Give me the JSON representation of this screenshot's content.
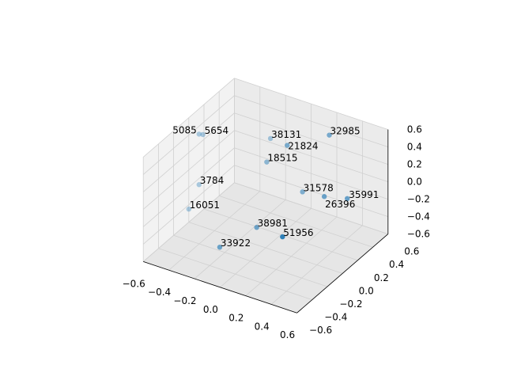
{
  "chart_data": {
    "type": "scatter",
    "projection": "3d",
    "title": "",
    "xlabel": "",
    "ylabel": "",
    "zlabel": "",
    "xlim": [
      -0.6,
      0.6
    ],
    "ylim": [
      -0.6,
      0.6
    ],
    "zlim": [
      -0.6,
      0.6
    ],
    "xticks": [
      "−0.6",
      "−0.4",
      "−0.2",
      "0.0",
      "0.2",
      "0.4",
      "0.6"
    ],
    "yticks": [
      "−0.6",
      "−0.4",
      "−0.2",
      "0.0",
      "0.2",
      "0.4",
      "0.6"
    ],
    "zticks": [
      "−0.6",
      "−0.4",
      "−0.2",
      "0.0",
      "0.2",
      "0.4",
      "0.6"
    ],
    "grid": true,
    "marker_color": "#1f77b4",
    "points": [
      {
        "label": "5085",
        "x": -0.52,
        "y": 0.0,
        "z": 0.45
      },
      {
        "label": "5654",
        "x": -0.49,
        "y": 0.0,
        "z": 0.46
      },
      {
        "label": "38131",
        "x": -0.14,
        "y": 0.3,
        "z": 0.36
      },
      {
        "label": "21824",
        "x": 0.05,
        "y": 0.2,
        "z": 0.45
      },
      {
        "label": "32985",
        "x": 0.26,
        "y": 0.4,
        "z": 0.52
      },
      {
        "label": "18515",
        "x": -0.11,
        "y": 0.2,
        "z": 0.18
      },
      {
        "label": "3784",
        "x": -0.52,
        "y": 0.0,
        "z": -0.13
      },
      {
        "label": "16051",
        "x": -0.6,
        "y": 0.0,
        "z": -0.45
      },
      {
        "label": "31578",
        "x": 0.11,
        "y": 0.3,
        "z": -0.13
      },
      {
        "label": "26396",
        "x": 0.28,
        "y": 0.3,
        "z": -0.1
      },
      {
        "label": "35991",
        "x": 0.4,
        "y": 0.4,
        "z": -0.14
      },
      {
        "label": "38981",
        "x": -0.07,
        "y": 0.0,
        "z": -0.4
      },
      {
        "label": "51956",
        "x": 0.25,
        "y": -0.2,
        "z": -0.2
      },
      {
        "label": "33922",
        "x": -0.24,
        "y": -0.2,
        "z": -0.56
      }
    ]
  }
}
